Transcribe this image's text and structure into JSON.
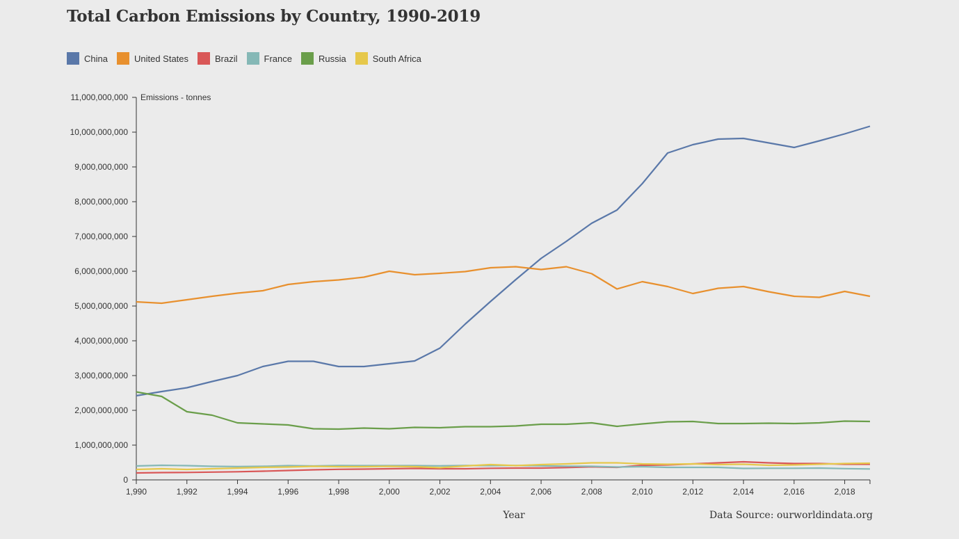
{
  "chart_data": {
    "type": "line",
    "title": "Total Carbon Emissions by Country, 1990-2019",
    "xlabel": "Year",
    "ylabel": "Emissions - tonnes",
    "source": "Data Source: ourworldindata.org",
    "xlim": [
      1990,
      2019
    ],
    "ylim": [
      0,
      11000000000
    ],
    "x_ticks": [
      1990,
      1992,
      1994,
      1996,
      1998,
      2000,
      2002,
      2004,
      2006,
      2008,
      2010,
      2012,
      2014,
      2016,
      2018
    ],
    "x_tick_labels": [
      "1,990",
      "1,992",
      "1,994",
      "1,996",
      "1,998",
      "2,000",
      "2,002",
      "2,004",
      "2,006",
      "2,008",
      "2,010",
      "2,012",
      "2,014",
      "2,016",
      "2,018"
    ],
    "y_ticks": [
      0,
      1000000000,
      2000000000,
      3000000000,
      4000000000,
      5000000000,
      6000000000,
      7000000000,
      8000000000,
      9000000000,
      10000000000,
      11000000000
    ],
    "y_tick_labels": [
      "0",
      "1,000,000,000",
      "2,000,000,000",
      "3,000,000,000",
      "4,000,000,000",
      "5,000,000,000",
      "6,000,000,000",
      "7,000,000,000",
      "8,000,000,000",
      "9,000,000,000",
      "10,000,000,000",
      "11,000,000,000"
    ],
    "x": [
      1990,
      1991,
      1992,
      1993,
      1994,
      1995,
      1996,
      1997,
      1998,
      1999,
      2000,
      2001,
      2002,
      2003,
      2004,
      2005,
      2006,
      2007,
      2008,
      2009,
      2010,
      2011,
      2012,
      2013,
      2014,
      2015,
      2016,
      2017,
      2018,
      2019
    ],
    "series": [
      {
        "name": "China",
        "color": "#5a78a9",
        "values": [
          2420000000,
          2540000000,
          2650000000,
          2830000000,
          3000000000,
          3260000000,
          3410000000,
          3410000000,
          3260000000,
          3260000000,
          3340000000,
          3420000000,
          3790000000,
          4480000000,
          5130000000,
          5760000000,
          6370000000,
          6860000000,
          7380000000,
          7760000000,
          8520000000,
          9400000000,
          9640000000,
          9800000000,
          9820000000,
          9690000000,
          9560000000,
          9750000000,
          9950000000,
          10170000000
        ]
      },
      {
        "name": "United States",
        "color": "#e8902e",
        "values": [
          5120000000,
          5080000000,
          5180000000,
          5280000000,
          5370000000,
          5440000000,
          5620000000,
          5700000000,
          5750000000,
          5830000000,
          6000000000,
          5900000000,
          5940000000,
          5990000000,
          6100000000,
          6130000000,
          6050000000,
          6130000000,
          5930000000,
          5490000000,
          5700000000,
          5560000000,
          5360000000,
          5510000000,
          5560000000,
          5410000000,
          5280000000,
          5250000000,
          5420000000,
          5280000000
        ]
      },
      {
        "name": "Brazil",
        "color": "#d95757",
        "values": [
          200000000,
          210000000,
          215000000,
          225000000,
          235000000,
          250000000,
          270000000,
          290000000,
          305000000,
          310000000,
          320000000,
          330000000,
          320000000,
          320000000,
          335000000,
          340000000,
          340000000,
          355000000,
          375000000,
          360000000,
          420000000,
          430000000,
          460000000,
          490000000,
          520000000,
          490000000,
          470000000,
          470000000,
          450000000,
          450000000
        ]
      },
      {
        "name": "France",
        "color": "#85b8b6",
        "values": [
          400000000,
          420000000,
          410000000,
          390000000,
          385000000,
          390000000,
          410000000,
          400000000,
          415000000,
          410000000,
          410000000,
          410000000,
          405000000,
          415000000,
          410000000,
          415000000,
          405000000,
          395000000,
          390000000,
          370000000,
          380000000,
          360000000,
          360000000,
          360000000,
          330000000,
          335000000,
          335000000,
          340000000,
          325000000,
          315000000
        ]
      },
      {
        "name": "Russia",
        "color": "#6a9e4a",
        "values": [
          2530000000,
          2400000000,
          1960000000,
          1860000000,
          1640000000,
          1610000000,
          1580000000,
          1470000000,
          1460000000,
          1490000000,
          1470000000,
          1510000000,
          1500000000,
          1530000000,
          1530000000,
          1550000000,
          1600000000,
          1600000000,
          1640000000,
          1540000000,
          1610000000,
          1670000000,
          1680000000,
          1620000000,
          1620000000,
          1630000000,
          1620000000,
          1640000000,
          1690000000,
          1680000000
        ]
      },
      {
        "name": "South Africa",
        "color": "#e6c84b",
        "values": [
          300000000,
          320000000,
          300000000,
          320000000,
          340000000,
          360000000,
          370000000,
          390000000,
          380000000,
          380000000,
          390000000,
          380000000,
          350000000,
          400000000,
          440000000,
          410000000,
          440000000,
          460000000,
          490000000,
          490000000,
          460000000,
          450000000,
          460000000,
          440000000,
          450000000,
          420000000,
          430000000,
          450000000,
          470000000,
          480000000
        ]
      }
    ]
  }
}
